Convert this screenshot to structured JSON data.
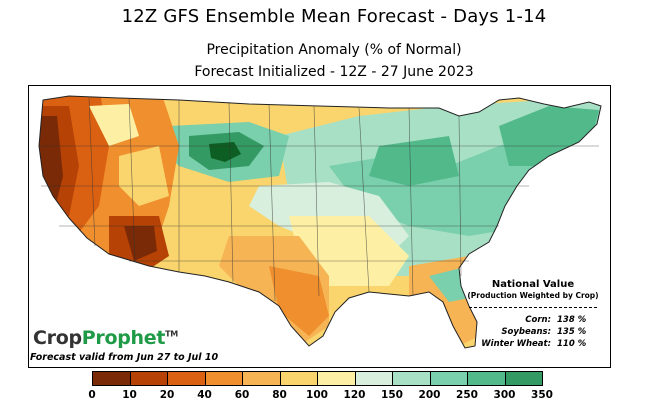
{
  "title": "12Z GFS Ensemble Mean Forecast  -  Days 1-14",
  "subtitle1": "Precipitation Anomaly (% of Normal)",
  "subtitle2": "Forecast Initialized - 12Z - 27 June 2023",
  "brand": {
    "part1": "Crop",
    "part2": "Prophet",
    "mark": "TM"
  },
  "valid_text": "Forecast valid from Jun 27 to Jul 10",
  "national_value": {
    "title": "National Value",
    "subtitle": "(Production Weighted by Crop)",
    "rows": [
      {
        "label": "Corn:",
        "value": "138 %"
      },
      {
        "label": "Soybeans:",
        "value": "135 %"
      },
      {
        "label": "Winter Wheat:",
        "value": "110 %"
      }
    ]
  },
  "legend": {
    "colors": [
      "#7a2a06",
      "#b64205",
      "#db6112",
      "#f08f2e",
      "#f7b454",
      "#fad56e",
      "#fdf0a5",
      "#d7efdc",
      "#a8e0c6",
      "#7acfac",
      "#52b98b",
      "#349a63",
      "#0d5e22"
    ],
    "ticks": [
      "0",
      "10",
      "20",
      "40",
      "60",
      "80",
      "100",
      "120",
      "150",
      "200",
      "250",
      "300",
      "350"
    ]
  },
  "colors": {
    "dry_extreme": "#7a2a06",
    "dry": "#db6112",
    "normal": "#fdf0a5",
    "wet": "#7acfac",
    "wet_extreme": "#0d5e22"
  }
}
